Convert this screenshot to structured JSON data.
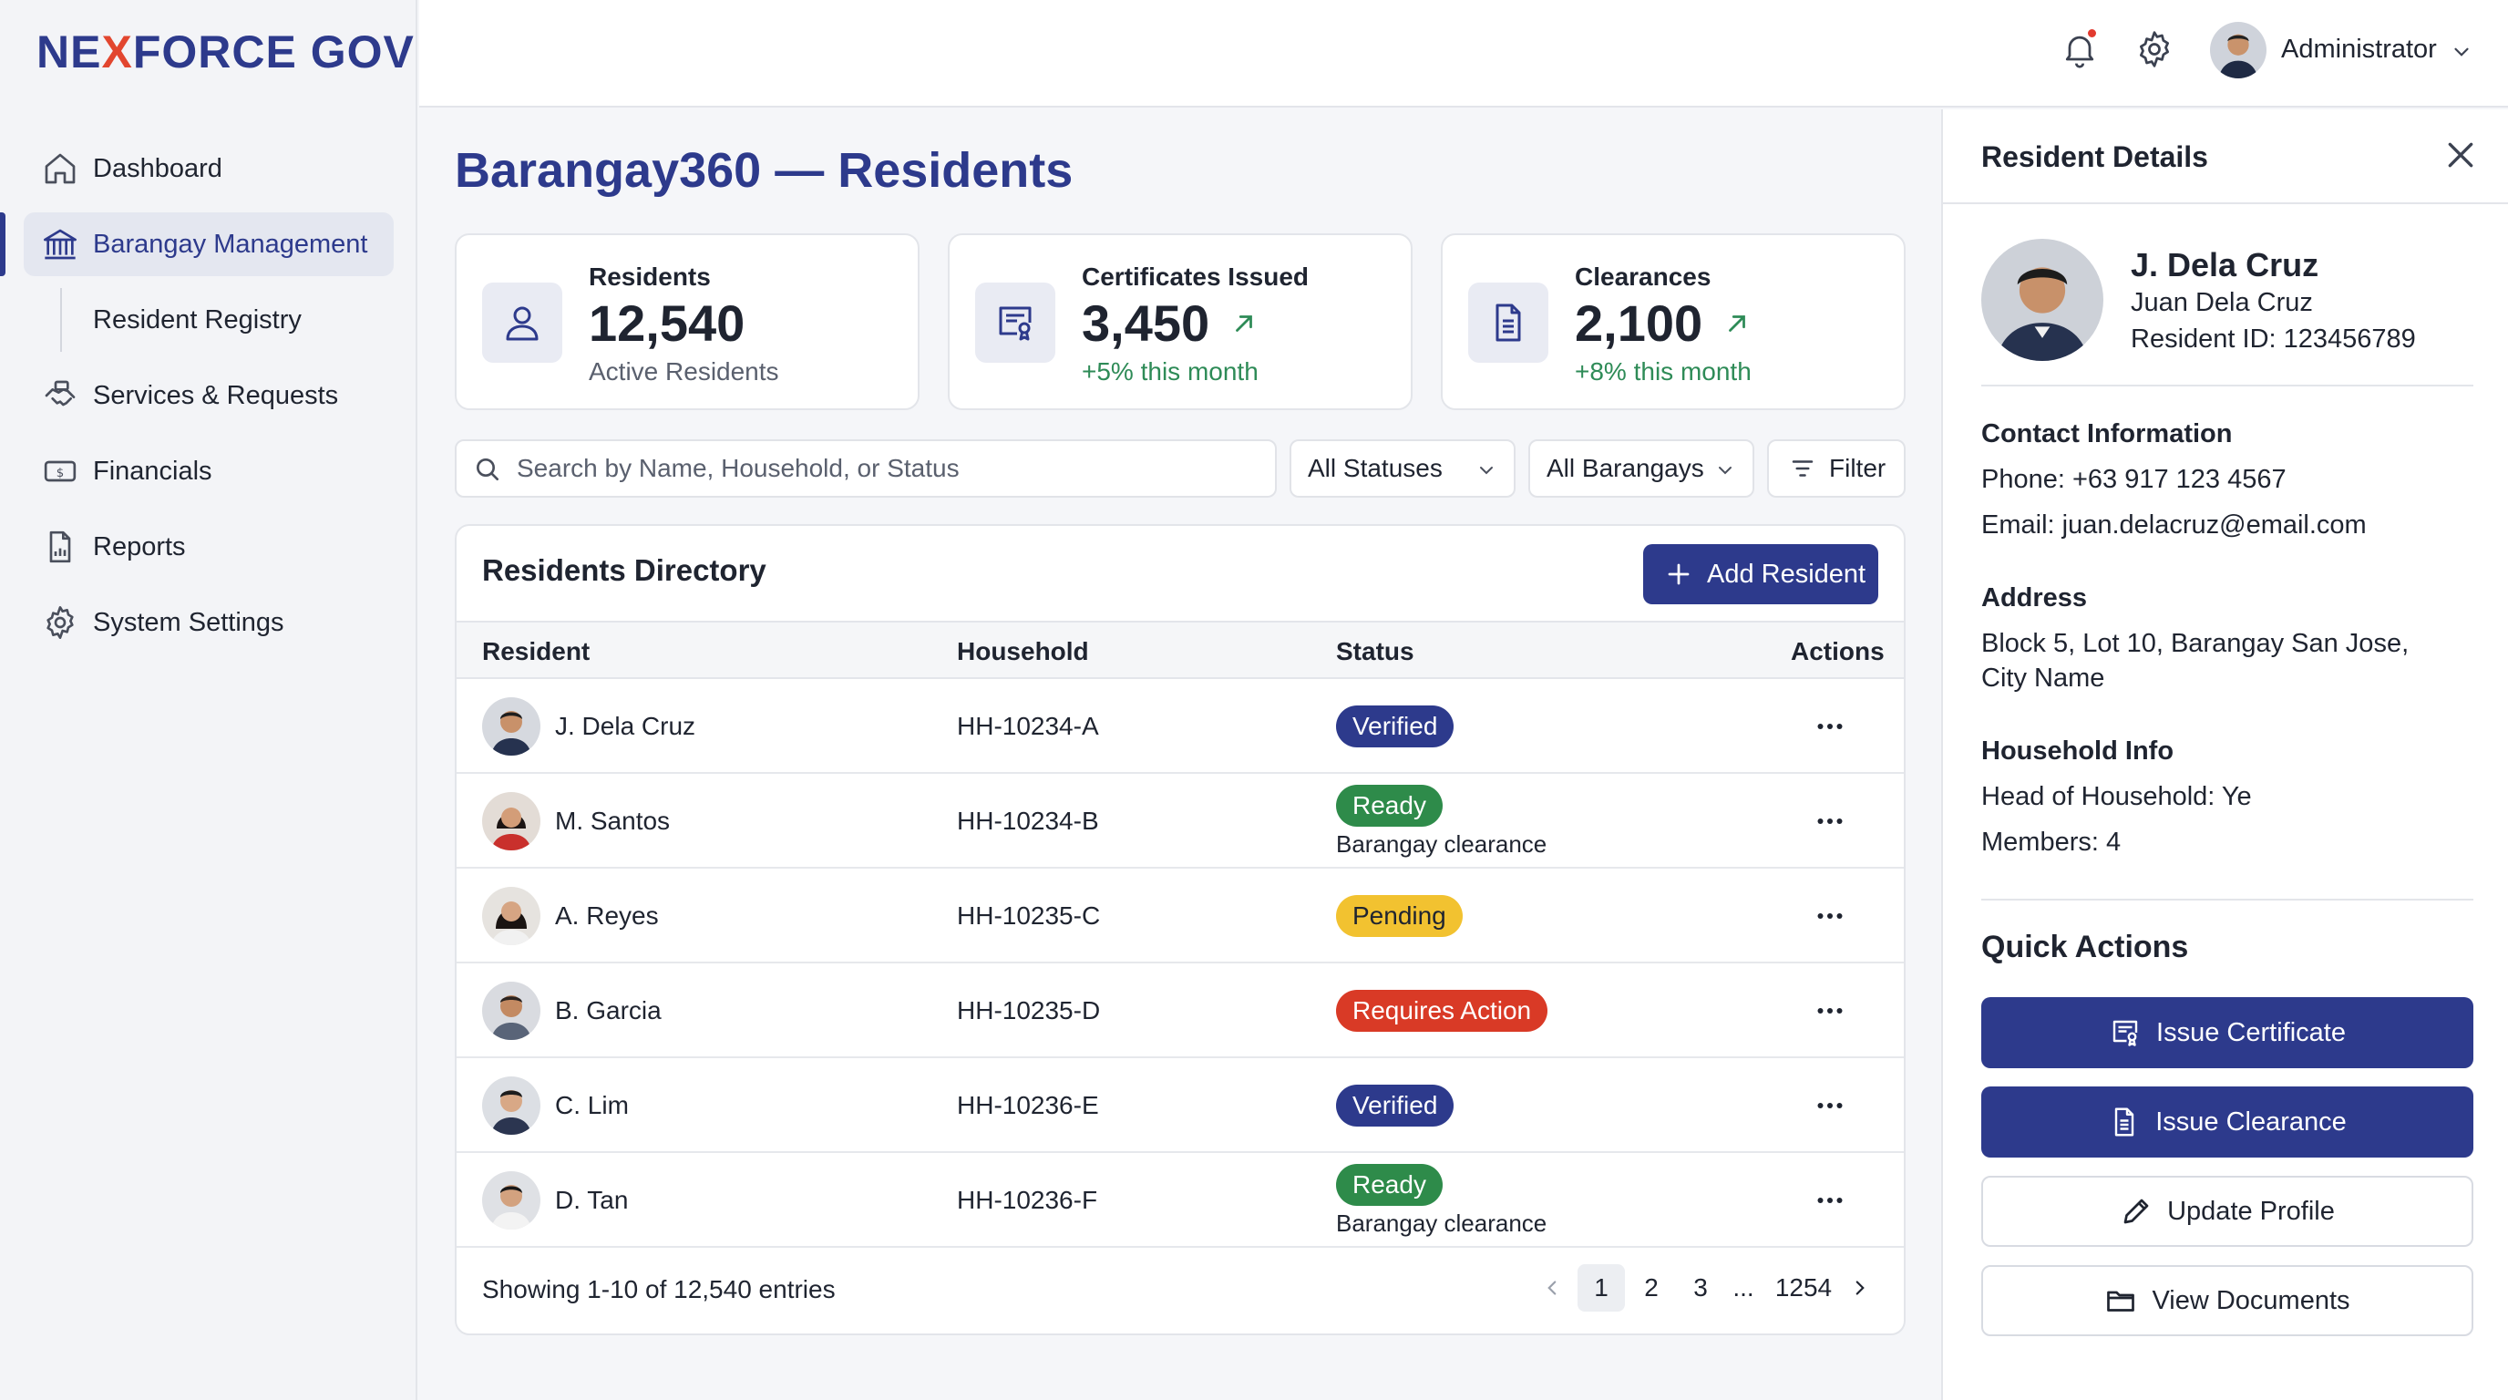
{
  "app": {
    "brand_prefix": "NE",
    "brand_x": "X",
    "brand_suffix": "FORCE GOV"
  },
  "header": {
    "user_name": "Administrator",
    "has_notification": true
  },
  "sidebar": {
    "items": [
      {
        "label": "Dashboard",
        "icon": "home-icon"
      },
      {
        "label": "Barangay Management",
        "icon": "building-icon",
        "active": true
      },
      {
        "label": "Resident Registry",
        "sub": true
      },
      {
        "label": "Services & Requests",
        "icon": "handshake-icon"
      },
      {
        "label": "Financials",
        "icon": "money-icon"
      },
      {
        "label": "Reports",
        "icon": "report-icon"
      },
      {
        "label": "System Settings",
        "icon": "gear-icon"
      }
    ]
  },
  "page": {
    "title": "Barangay360 — Residents"
  },
  "stats": [
    {
      "label": "Residents",
      "value": "12,540",
      "sub": "Active Residents",
      "icon": "user-icon"
    },
    {
      "label": "Certificates Issued",
      "value": "3,450",
      "sub": "+5% this month",
      "icon": "certificate-icon"
    },
    {
      "label": "Clearances",
      "value": "2,100",
      "sub": "+8% this month",
      "icon": "document-icon"
    }
  ],
  "filters": {
    "search_placeholder": "Search by Name, Household, or Status",
    "status_select": "All Statuses",
    "barangay_select": "All Barangays",
    "filter_label": "Filter"
  },
  "directory": {
    "title": "Residents Directory",
    "add_label": "Add Resident",
    "columns": [
      "Resident",
      "Household",
      "Status",
      "Actions"
    ],
    "rows": [
      {
        "name": "J. Dela Cruz",
        "household": "HH-10234-A",
        "status": "Verified",
        "status_type": "verified",
        "status_note": ""
      },
      {
        "name": "M. Santos",
        "household": "HH-10234-B",
        "status": "Ready",
        "status_type": "ready",
        "status_note": "Barangay clearance"
      },
      {
        "name": "A. Reyes",
        "household": "HH-10235-C",
        "status": "Pending",
        "status_type": "pending",
        "status_note": ""
      },
      {
        "name": "B. Garcia",
        "household": "HH-10235-D",
        "status": "Requires Action",
        "status_type": "action",
        "status_note": ""
      },
      {
        "name": "C. Lim",
        "household": "HH-10236-E",
        "status": "Verified",
        "status_type": "verified",
        "status_note": ""
      },
      {
        "name": "D. Tan",
        "household": "HH-10236-F",
        "status": "Ready",
        "status_type": "ready",
        "status_note": "Barangay clearance"
      }
    ],
    "showing": "Showing 1-10 of 12,540 entries",
    "pages": [
      "1",
      "2",
      "3",
      "...",
      "1254"
    ],
    "current_page": "1"
  },
  "details": {
    "title": "Resident Details",
    "short_name": "J. Dela Cruz",
    "full_name": "Juan Dela Cruz",
    "resident_id": "Resident ID: 123456789",
    "contact_title": "Contact Information",
    "phone": "Phone: +63 917 123 4567",
    "email": "Email: juan.delacruz@email.com",
    "address_title": "Address",
    "address_line1": "Block 5, Lot 10, Barangay San Jose,",
    "address_line2": "City Name",
    "household_title": "Household Info",
    "head": "Head of Household: Ye",
    "members": "Members: 4",
    "quick_actions_title": "Quick Actions",
    "actions": [
      "Issue Certificate",
      "Issue Clearance",
      "Update Profile",
      "View Documents"
    ]
  },
  "colors": {
    "primary": "#2d3a8c",
    "brand_x": "#e2462f",
    "verified": "#2d3a8c",
    "ready": "#2e8b4a",
    "pending": "#f2c230",
    "requires_action": "#d93a26",
    "trend_up": "#2e8b57"
  }
}
